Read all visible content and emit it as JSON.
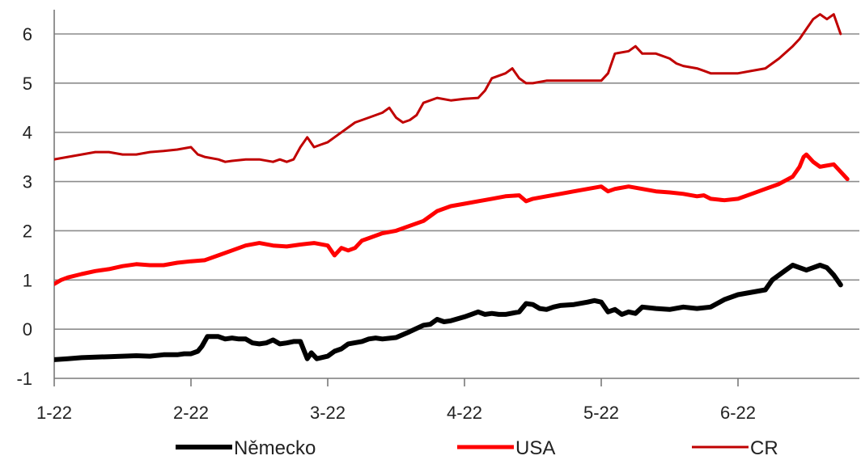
{
  "chart_data": {
    "type": "line",
    "title": "",
    "xlabel": "",
    "ylabel": "",
    "ylim": [
      -1,
      6.5
    ],
    "yticks": [
      -1,
      0,
      1,
      2,
      3,
      4,
      5,
      6
    ],
    "xticks": [
      "1-22",
      "2-22",
      "3-22",
      "4-22",
      "5-22",
      "6-22"
    ],
    "grid": true,
    "legend_position": "bottom",
    "x_unit": "month index (0 = 1-22, 1 = 2-22, ...)",
    "series": [
      {
        "name": "Německo",
        "color": "#000000",
        "width": 6,
        "points": [
          [
            0.0,
            -0.62
          ],
          [
            0.1,
            -0.6
          ],
          [
            0.2,
            -0.58
          ],
          [
            0.3,
            -0.57
          ],
          [
            0.4,
            -0.56
          ],
          [
            0.5,
            -0.55
          ],
          [
            0.6,
            -0.54
          ],
          [
            0.7,
            -0.55
          ],
          [
            0.8,
            -0.52
          ],
          [
            0.9,
            -0.52
          ],
          [
            0.95,
            -0.5
          ],
          [
            1.0,
            -0.5
          ],
          [
            1.05,
            -0.45
          ],
          [
            1.08,
            -0.35
          ],
          [
            1.12,
            -0.15
          ],
          [
            1.2,
            -0.15
          ],
          [
            1.25,
            -0.2
          ],
          [
            1.3,
            -0.18
          ],
          [
            1.35,
            -0.2
          ],
          [
            1.4,
            -0.2
          ],
          [
            1.45,
            -0.28
          ],
          [
            1.5,
            -0.3
          ],
          [
            1.55,
            -0.28
          ],
          [
            1.6,
            -0.22
          ],
          [
            1.65,
            -0.3
          ],
          [
            1.7,
            -0.28
          ],
          [
            1.75,
            -0.25
          ],
          [
            1.8,
            -0.25
          ],
          [
            1.85,
            -0.6
          ],
          [
            1.88,
            -0.48
          ],
          [
            1.92,
            -0.6
          ],
          [
            2.0,
            -0.55
          ],
          [
            2.05,
            -0.45
          ],
          [
            2.1,
            -0.4
          ],
          [
            2.15,
            -0.3
          ],
          [
            2.25,
            -0.25
          ],
          [
            2.3,
            -0.2
          ],
          [
            2.35,
            -0.18
          ],
          [
            2.4,
            -0.2
          ],
          [
            2.5,
            -0.17
          ],
          [
            2.6,
            -0.05
          ],
          [
            2.7,
            0.08
          ],
          [
            2.75,
            0.1
          ],
          [
            2.8,
            0.2
          ],
          [
            2.85,
            0.15
          ],
          [
            2.9,
            0.17
          ],
          [
            3.0,
            0.25
          ],
          [
            3.05,
            0.3
          ],
          [
            3.1,
            0.35
          ],
          [
            3.15,
            0.3
          ],
          [
            3.2,
            0.32
          ],
          [
            3.25,
            0.3
          ],
          [
            3.3,
            0.3
          ],
          [
            3.4,
            0.35
          ],
          [
            3.45,
            0.52
          ],
          [
            3.5,
            0.5
          ],
          [
            3.55,
            0.42
          ],
          [
            3.6,
            0.4
          ],
          [
            3.65,
            0.45
          ],
          [
            3.7,
            0.48
          ],
          [
            3.8,
            0.5
          ],
          [
            3.9,
            0.55
          ],
          [
            3.95,
            0.58
          ],
          [
            4.0,
            0.55
          ],
          [
            4.05,
            0.35
          ],
          [
            4.1,
            0.4
          ],
          [
            4.15,
            0.3
          ],
          [
            4.2,
            0.35
          ],
          [
            4.25,
            0.32
          ],
          [
            4.3,
            0.45
          ],
          [
            4.4,
            0.42
          ],
          [
            4.5,
            0.4
          ],
          [
            4.6,
            0.45
          ],
          [
            4.7,
            0.42
          ],
          [
            4.8,
            0.45
          ],
          [
            4.9,
            0.6
          ],
          [
            5.0,
            0.7
          ],
          [
            5.1,
            0.75
          ],
          [
            5.2,
            0.8
          ],
          [
            5.25,
            1.0
          ],
          [
            5.3,
            1.1
          ],
          [
            5.35,
            1.2
          ],
          [
            5.4,
            1.3
          ],
          [
            5.45,
            1.25
          ],
          [
            5.5,
            1.2
          ],
          [
            5.55,
            1.25
          ],
          [
            5.6,
            1.3
          ],
          [
            5.65,
            1.25
          ],
          [
            5.7,
            1.1
          ],
          [
            5.75,
            0.9
          ]
        ]
      },
      {
        "name": "USA",
        "color": "#ff0000",
        "width": 5,
        "points": [
          [
            0.0,
            0.92
          ],
          [
            0.05,
            1.0
          ],
          [
            0.1,
            1.05
          ],
          [
            0.2,
            1.12
          ],
          [
            0.3,
            1.18
          ],
          [
            0.4,
            1.22
          ],
          [
            0.5,
            1.28
          ],
          [
            0.6,
            1.32
          ],
          [
            0.7,
            1.3
          ],
          [
            0.8,
            1.3
          ],
          [
            0.9,
            1.35
          ],
          [
            1.0,
            1.38
          ],
          [
            1.1,
            1.4
          ],
          [
            1.2,
            1.5
          ],
          [
            1.3,
            1.6
          ],
          [
            1.4,
            1.7
          ],
          [
            1.5,
            1.75
          ],
          [
            1.6,
            1.7
          ],
          [
            1.7,
            1.68
          ],
          [
            1.8,
            1.72
          ],
          [
            1.9,
            1.75
          ],
          [
            2.0,
            1.7
          ],
          [
            2.05,
            1.5
          ],
          [
            2.1,
            1.65
          ],
          [
            2.15,
            1.6
          ],
          [
            2.2,
            1.65
          ],
          [
            2.25,
            1.8
          ],
          [
            2.3,
            1.85
          ],
          [
            2.4,
            1.95
          ],
          [
            2.5,
            2.0
          ],
          [
            2.6,
            2.1
          ],
          [
            2.7,
            2.2
          ],
          [
            2.8,
            2.4
          ],
          [
            2.9,
            2.5
          ],
          [
            3.0,
            2.55
          ],
          [
            3.1,
            2.6
          ],
          [
            3.2,
            2.65
          ],
          [
            3.3,
            2.7
          ],
          [
            3.4,
            2.72
          ],
          [
            3.45,
            2.6
          ],
          [
            3.5,
            2.65
          ],
          [
            3.6,
            2.7
          ],
          [
            3.7,
            2.75
          ],
          [
            3.8,
            2.8
          ],
          [
            3.9,
            2.85
          ],
          [
            4.0,
            2.9
          ],
          [
            4.05,
            2.8
          ],
          [
            4.1,
            2.85
          ],
          [
            4.2,
            2.9
          ],
          [
            4.3,
            2.85
          ],
          [
            4.4,
            2.8
          ],
          [
            4.5,
            2.78
          ],
          [
            4.6,
            2.75
          ],
          [
            4.7,
            2.7
          ],
          [
            4.75,
            2.72
          ],
          [
            4.8,
            2.65
          ],
          [
            4.9,
            2.62
          ],
          [
            5.0,
            2.65
          ],
          [
            5.1,
            2.75
          ],
          [
            5.2,
            2.85
          ],
          [
            5.3,
            2.95
          ],
          [
            5.4,
            3.1
          ],
          [
            5.45,
            3.3
          ],
          [
            5.48,
            3.5
          ],
          [
            5.5,
            3.55
          ],
          [
            5.55,
            3.4
          ],
          [
            5.6,
            3.3
          ],
          [
            5.7,
            3.35
          ],
          [
            5.75,
            3.2
          ],
          [
            5.8,
            3.05
          ]
        ]
      },
      {
        "name": "CR",
        "color": "#c00000",
        "width": 3,
        "points": [
          [
            0.0,
            3.45
          ],
          [
            0.1,
            3.5
          ],
          [
            0.2,
            3.55
          ],
          [
            0.3,
            3.6
          ],
          [
            0.4,
            3.6
          ],
          [
            0.5,
            3.55
          ],
          [
            0.6,
            3.55
          ],
          [
            0.7,
            3.6
          ],
          [
            0.8,
            3.62
          ],
          [
            0.9,
            3.65
          ],
          [
            1.0,
            3.7
          ],
          [
            1.05,
            3.55
          ],
          [
            1.1,
            3.5
          ],
          [
            1.2,
            3.45
          ],
          [
            1.25,
            3.4
          ],
          [
            1.3,
            3.42
          ],
          [
            1.4,
            3.45
          ],
          [
            1.5,
            3.45
          ],
          [
            1.6,
            3.4
          ],
          [
            1.65,
            3.45
          ],
          [
            1.7,
            3.4
          ],
          [
            1.75,
            3.45
          ],
          [
            1.8,
            3.7
          ],
          [
            1.85,
            3.9
          ],
          [
            1.9,
            3.7
          ],
          [
            1.95,
            3.75
          ],
          [
            2.0,
            3.8
          ],
          [
            2.05,
            3.9
          ],
          [
            2.1,
            4.0
          ],
          [
            2.15,
            4.1
          ],
          [
            2.2,
            4.2
          ],
          [
            2.3,
            4.3
          ],
          [
            2.4,
            4.4
          ],
          [
            2.45,
            4.5
          ],
          [
            2.5,
            4.3
          ],
          [
            2.55,
            4.2
          ],
          [
            2.6,
            4.25
          ],
          [
            2.65,
            4.35
          ],
          [
            2.7,
            4.6
          ],
          [
            2.8,
            4.7
          ],
          [
            2.9,
            4.65
          ],
          [
            3.0,
            4.68
          ],
          [
            3.1,
            4.7
          ],
          [
            3.15,
            4.85
          ],
          [
            3.2,
            5.1
          ],
          [
            3.3,
            5.2
          ],
          [
            3.35,
            5.3
          ],
          [
            3.4,
            5.1
          ],
          [
            3.45,
            5.0
          ],
          [
            3.5,
            5.0
          ],
          [
            3.6,
            5.05
          ],
          [
            3.7,
            5.05
          ],
          [
            3.8,
            5.05
          ],
          [
            3.9,
            5.05
          ],
          [
            4.0,
            5.05
          ],
          [
            4.05,
            5.2
          ],
          [
            4.1,
            5.6
          ],
          [
            4.2,
            5.65
          ],
          [
            4.25,
            5.75
          ],
          [
            4.3,
            5.6
          ],
          [
            4.4,
            5.6
          ],
          [
            4.5,
            5.5
          ],
          [
            4.55,
            5.4
          ],
          [
            4.6,
            5.35
          ],
          [
            4.7,
            5.3
          ],
          [
            4.75,
            5.25
          ],
          [
            4.8,
            5.2
          ],
          [
            4.9,
            5.2
          ],
          [
            5.0,
            5.2
          ],
          [
            5.1,
            5.25
          ],
          [
            5.2,
            5.3
          ],
          [
            5.3,
            5.5
          ],
          [
            5.4,
            5.75
          ],
          [
            5.45,
            5.9
          ],
          [
            5.5,
            6.1
          ],
          [
            5.55,
            6.3
          ],
          [
            5.6,
            6.4
          ],
          [
            5.65,
            6.3
          ],
          [
            5.7,
            6.4
          ],
          [
            5.75,
            6.0
          ]
        ]
      }
    ]
  }
}
